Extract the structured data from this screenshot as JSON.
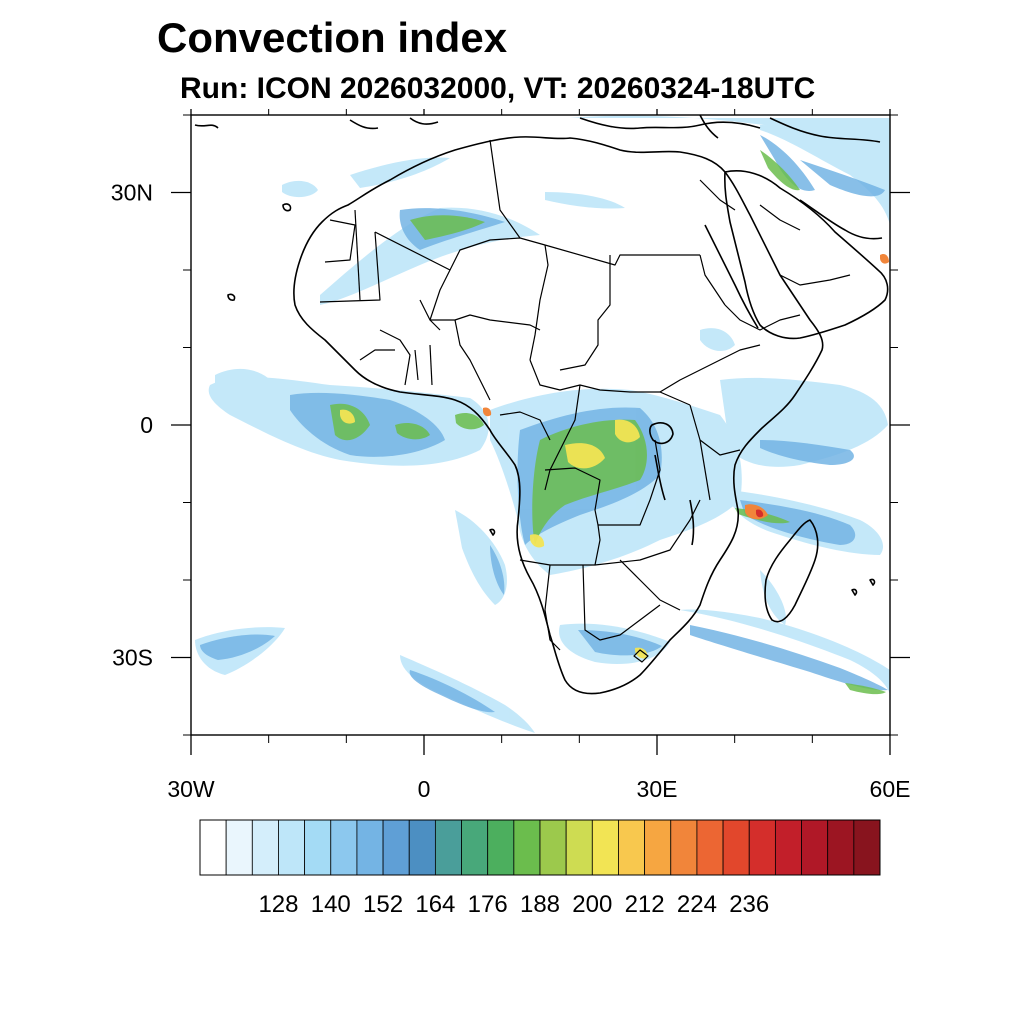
{
  "header": {
    "title": "Convection index",
    "subtitle": "Run: ICON 2026032000,  VT: 20260324-18UTC"
  },
  "map": {
    "region": "Africa",
    "lon_range": [
      -30,
      60
    ],
    "lat_range": [
      -40,
      40
    ],
    "lon_ticks": [
      {
        "value": -30,
        "label": "30W"
      },
      {
        "value": 0,
        "label": "0"
      },
      {
        "value": 30,
        "label": "30E"
      },
      {
        "value": 60,
        "label": "60E"
      }
    ],
    "lat_ticks": [
      {
        "value": 30,
        "label": "30N"
      },
      {
        "value": 0,
        "label": "0"
      },
      {
        "value": -30,
        "label": "30S"
      }
    ]
  },
  "colorbar": {
    "colors": [
      "#ffffff",
      "#eaf6fd",
      "#d4eefb",
      "#bee6f9",
      "#a4dbf5",
      "#8cc8ee",
      "#74b4e4",
      "#5f9fd6",
      "#4c8fc2",
      "#4a9e9a",
      "#48a87a",
      "#4caf5e",
      "#6bbd4d",
      "#9cc94c",
      "#cedc52",
      "#f2e454",
      "#f8c84e",
      "#f6a641",
      "#f1853a",
      "#ec6633",
      "#e2472c",
      "#d42e2b",
      "#c21f2a",
      "#b01827",
      "#9c1522",
      "#88141e"
    ],
    "labels": [
      "128",
      "140",
      "152",
      "164",
      "176",
      "188",
      "200",
      "212",
      "224",
      "236"
    ]
  }
}
